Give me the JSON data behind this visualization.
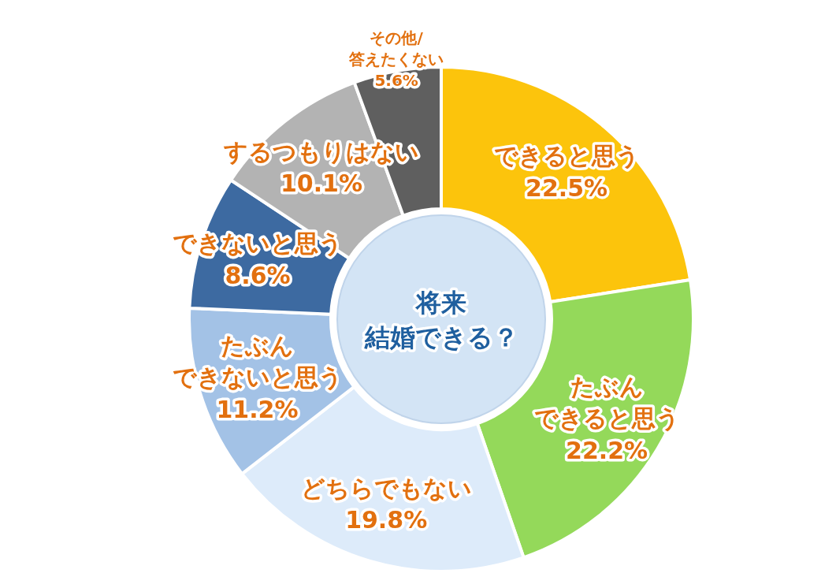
{
  "chart_data": {
    "type": "donut",
    "title": "将来結婚できる？",
    "categories": [
      "できると思う",
      "たぶんできると思う",
      "どちらでもない",
      "たぶんできないと思う",
      "できないと思う",
      "するつもりはない",
      "その他/答えたくない"
    ],
    "values": [
      22.5,
      22.2,
      19.8,
      11.2,
      8.6,
      10.1,
      5.6
    ],
    "value_labels": [
      "22.5%",
      "22.2%",
      "19.8%",
      "11.2%",
      "8.6%",
      "10.1%",
      "5.6%"
    ],
    "colors": [
      "#fcc40c",
      "#94d95a",
      "#ddebfa",
      "#a3c2e6",
      "#3d6aa1",
      "#b3b3b3",
      "#5f5f5f"
    ]
  }
}
